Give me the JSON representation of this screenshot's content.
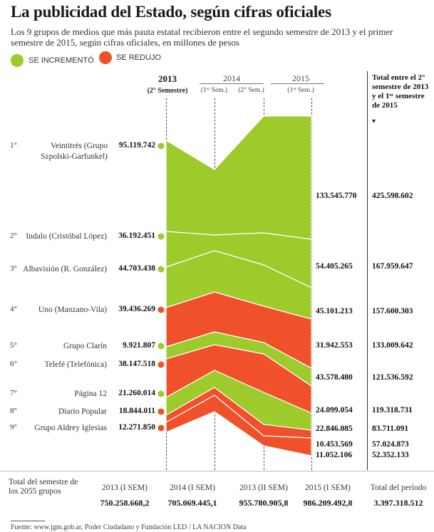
{
  "title": "La publicidad del Estado, según cifras oficiales",
  "subtitle": "Los 9 grupos de medios que más pauta estatal recibieron entre el segundo semestre de 2013 y el primer semestre de 2015, según cifras oficiales, en millones de pesos",
  "legend": [
    {
      "label": "SE INCREMENTÓ",
      "color": "#9ccb2b"
    },
    {
      "label": "SE REDUJO",
      "color": "#f0502a"
    }
  ],
  "headers": {
    "y2013": "2013",
    "y2013_sub": "(2° Semestre)",
    "y2014": "2014",
    "y2014_sub1": "(1ᵉʳ Sem.)",
    "y2014_sub2": "(2° Sem.)",
    "y2015": "2015",
    "y2015_sub": "(1ᵉʳ Sem.)",
    "total": "Total entre el 2° semestre de 2013 y el 1ᵉʳ semestre de 2015",
    "total_arrow": "▾"
  },
  "chart_data": {
    "type": "area",
    "x": [
      "2013 (2° Sem.)",
      "2014 (1ᵉʳ Sem.)",
      "2014 (2° Sem.)",
      "2015 (1ᵉʳ Sem.)"
    ],
    "groups": [
      {
        "rank": "1°",
        "name": "Veintitrés (Grupo Szpolski-Garfunkel)",
        "v2013": "95.119.742",
        "v2015": "133.545.770",
        "total": "425.598.602",
        "trend": "up"
      },
      {
        "rank": "2°",
        "name": "Indalo (Cristóbal López)",
        "v2013": "36.192.451",
        "v2015": "",
        "total": "",
        "trend": "up"
      },
      {
        "rank": "3°",
        "name": "Albavisión (R. González)",
        "v2013": "44.703.438",
        "v2015": "54.405.265",
        "total": "167.959.647",
        "trend": "up"
      },
      {
        "rank": "4°",
        "name": "Uno (Manzano-Vila)",
        "v2013": "39.436.269",
        "v2015": "45.101.213",
        "total": "157.600.303",
        "trend": "down"
      },
      {
        "rank": "5°",
        "name": "Grupo Clarín",
        "v2013": "9.921.807",
        "v2015": "31.942.553",
        "total": "133.009.642",
        "trend": "up"
      },
      {
        "rank": "6°",
        "name": "Telefé (Telefónica)",
        "v2013": "38.147.518",
        "v2015": "43.578.480",
        "total": "121.536.592",
        "trend": "down"
      },
      {
        "rank": "7°",
        "name": "Página 12",
        "v2013": "21.260.014",
        "v2015": "24.099.054",
        "total": "119.318.731",
        "trend": "up"
      },
      {
        "rank": "8°",
        "name": "Diario Popular",
        "v2013": "18.844.011",
        "v2015": "22.846.085",
        "total": "83.711.091",
        "trend": "down"
      },
      {
        "rank": "9°",
        "name": "Grupo Aldrey Iglesias",
        "v2013": "12.271.850",
        "v2015": "10.453.569",
        "total": "57.024.873",
        "trend": "down"
      }
    ],
    "extra_right_values": {
      "v2015": "11.052.106",
      "total": "52.352.133"
    },
    "colors": {
      "increase": "#9ccb2b",
      "decrease": "#f0502a"
    }
  },
  "footer": {
    "label": "Total del semestre de los 2055 grupos",
    "columns": [
      {
        "label": "2013 (I SEM)",
        "value": "750.258.668,2"
      },
      {
        "label": "2014 (I SEM)",
        "value": "705.069.445,1"
      },
      {
        "label": "2013 (II SEM)",
        "value": "955.780.905,8"
      },
      {
        "label": "2015 (I SEM)",
        "value": "986.209.492,8"
      },
      {
        "label": "Total del período",
        "value": "3.397.318.512"
      }
    ]
  },
  "source": "Fuente: www.jgm.gob.ar, Poder Ciudadano y Fundación LED / LA NACION Data"
}
